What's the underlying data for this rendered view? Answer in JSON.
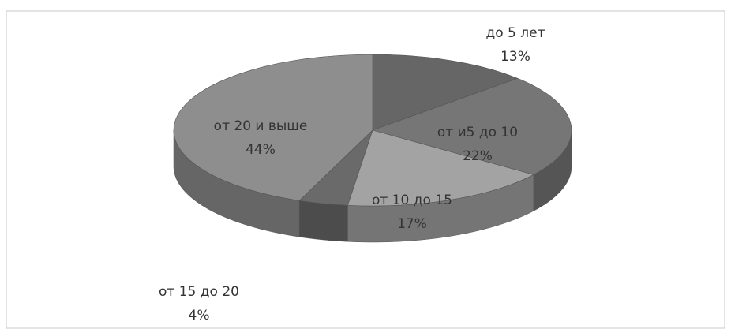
{
  "chart_data": {
    "type": "pie3d",
    "categories": [
      "до 5 лет",
      "от и5 до 10",
      "от 10 до 15",
      "от 15 до 20",
      "от 20 и выше"
    ],
    "values": [
      13,
      22,
      17,
      4,
      44
    ],
    "value_labels": [
      "13%",
      "22%",
      "17%",
      "4%",
      "44%"
    ],
    "colors": [
      "#666666",
      "#767676",
      "#a3a3a3",
      "#6a6a6a",
      "#8e8e8e"
    ]
  }
}
